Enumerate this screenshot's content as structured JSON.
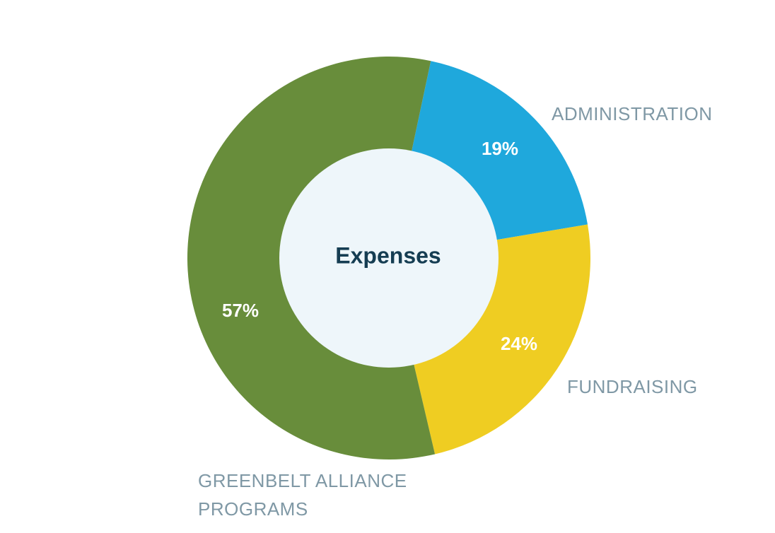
{
  "chart_data": {
    "type": "donut",
    "title": "Expenses",
    "categories": [
      "ADMINISTRATION",
      "FUNDRAISING",
      "GREENBELT ALLIANCE PROGRAMS"
    ],
    "values": [
      19,
      24,
      57
    ],
    "value_labels": [
      "19%",
      "24%",
      "57%"
    ],
    "colors": [
      "#1fa8dc",
      "#efcd22",
      "#688d3b"
    ]
  }
}
